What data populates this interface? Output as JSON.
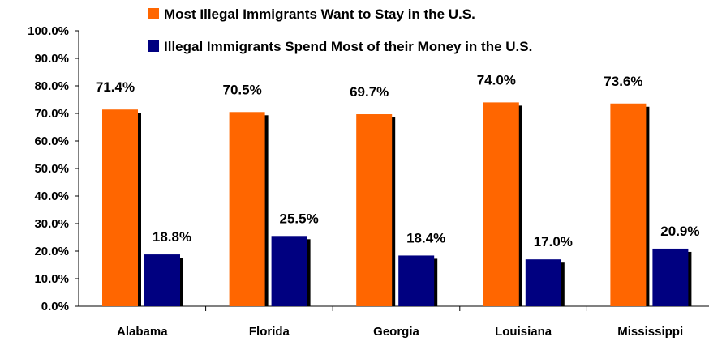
{
  "chart_data": {
    "type": "bar",
    "title": "",
    "xlabel": "",
    "ylabel": "",
    "categories": [
      "Alabama",
      "Florida",
      "Georgia",
      "Louisiana",
      "Mississippi"
    ],
    "series": [
      {
        "name": "Most Illegal Immigrants Want to Stay in the U.S.",
        "color": "#ff6600",
        "values": [
          71.4,
          70.5,
          69.7,
          74.0,
          73.6
        ],
        "labels": [
          "71.4%",
          "70.5%",
          "69.7%",
          "74.0%",
          "73.6%"
        ]
      },
      {
        "name": "Illegal Immigrants Spend Most of their Money in the U.S.",
        "color": "#000080",
        "values": [
          18.8,
          25.5,
          18.4,
          17.0,
          20.9
        ],
        "labels": [
          "18.8%",
          "25.5%",
          "18.4%",
          "17.0%",
          "20.9%"
        ]
      }
    ],
    "ylim": [
      0,
      100
    ],
    "yticks": [
      "0.0%",
      "10.0%",
      "20.0%",
      "30.0%",
      "40.0%",
      "50.0%",
      "60.0%",
      "70.0%",
      "80.0%",
      "90.0%",
      "100.0%"
    ],
    "grid": false,
    "legend_position": "top"
  }
}
